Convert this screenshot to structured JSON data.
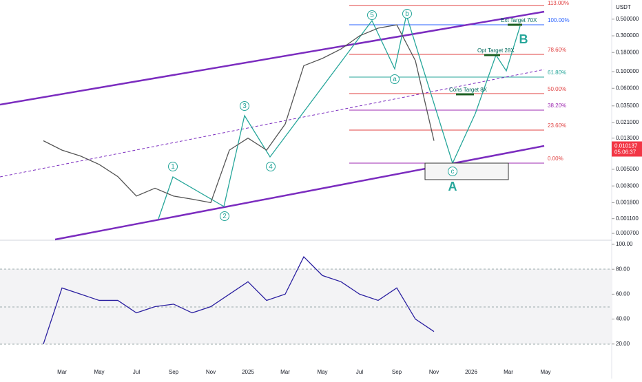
{
  "chart_data": [
    {
      "type": "line",
      "log_scale": true,
      "currency": "USDT",
      "color": "#555555",
      "categories": [
        null,
        "Mar",
        null,
        "May",
        null,
        "Jul",
        null,
        "Sep",
        null,
        "Nov",
        null,
        "2025",
        null,
        "Mar",
        null,
        "May",
        null,
        "Jul",
        null,
        "Sep",
        null,
        "Nov",
        null,
        "2026",
        null,
        "Mar",
        null,
        "May"
      ],
      "values": [
        0.012,
        0.009,
        0.0075,
        0.0058,
        0.004,
        0.0022,
        0.0028,
        0.0022,
        0.002,
        0.0018,
        0.009,
        0.013,
        0.009,
        0.02,
        0.12,
        0.15,
        0.2,
        0.3,
        0.38,
        0.42,
        0.14,
        0.012,
        null,
        null,
        null,
        null,
        null,
        null
      ],
      "ylim": [
        0.00058,
        0.9
      ],
      "yticks": [
        {
          "value": 0.5,
          "label": "0.500000"
        },
        {
          "value": 0.3,
          "label": "0.300000"
        },
        {
          "value": 0.18,
          "label": "0.180000"
        },
        {
          "value": 0.1,
          "label": "0.100000"
        },
        {
          "value": 0.06,
          "label": "0.060000"
        },
        {
          "value": 0.035,
          "label": "0.035000"
        },
        {
          "value": 0.021,
          "label": "0.021000"
        },
        {
          "value": 0.013,
          "label": "0.013000"
        },
        {
          "value": 0.005,
          "label": "0.005000"
        },
        {
          "value": 0.003,
          "label": "0.003000"
        },
        {
          "value": 0.0018,
          "label": "0.001800"
        },
        {
          "value": 0.0011,
          "label": "0.001100"
        },
        {
          "value": 0.0007,
          "label": "0.000700"
        }
      ],
      "last_price": {
        "value": 0.010137,
        "label": "0.010137"
      },
      "countdown": "05:06:37",
      "fib_labels": [
        "113.00%",
        "100.00%",
        "78.60%",
        "61.80%",
        "50.00%",
        "38.20%",
        "23.60%",
        "0.00%"
      ],
      "wave_labels": [
        "1",
        "2",
        "3",
        "4",
        "5",
        "a",
        "b",
        "c",
        "A",
        "B"
      ],
      "target_labels": [
        "Ext Target 70X",
        "Opt Target 28X",
        "Cons Target 8X"
      ]
    },
    {
      "type": "line",
      "color": "#2a1fa0",
      "values": [
        20,
        65,
        60,
        55,
        55,
        45,
        50,
        52,
        45,
        50,
        60,
        70,
        55,
        60,
        90,
        75,
        70,
        60,
        55,
        65,
        40,
        30,
        null,
        null,
        null,
        null,
        null,
        null
      ],
      "ylim": [
        0,
        100
      ],
      "yticks": [
        {
          "value": 100,
          "label": "100.00"
        },
        {
          "value": 80,
          "label": "80.00"
        },
        {
          "value": 60,
          "label": "60.00"
        },
        {
          "value": 40,
          "label": "40.00"
        },
        {
          "value": 20,
          "label": "20.00"
        }
      ]
    }
  ]
}
